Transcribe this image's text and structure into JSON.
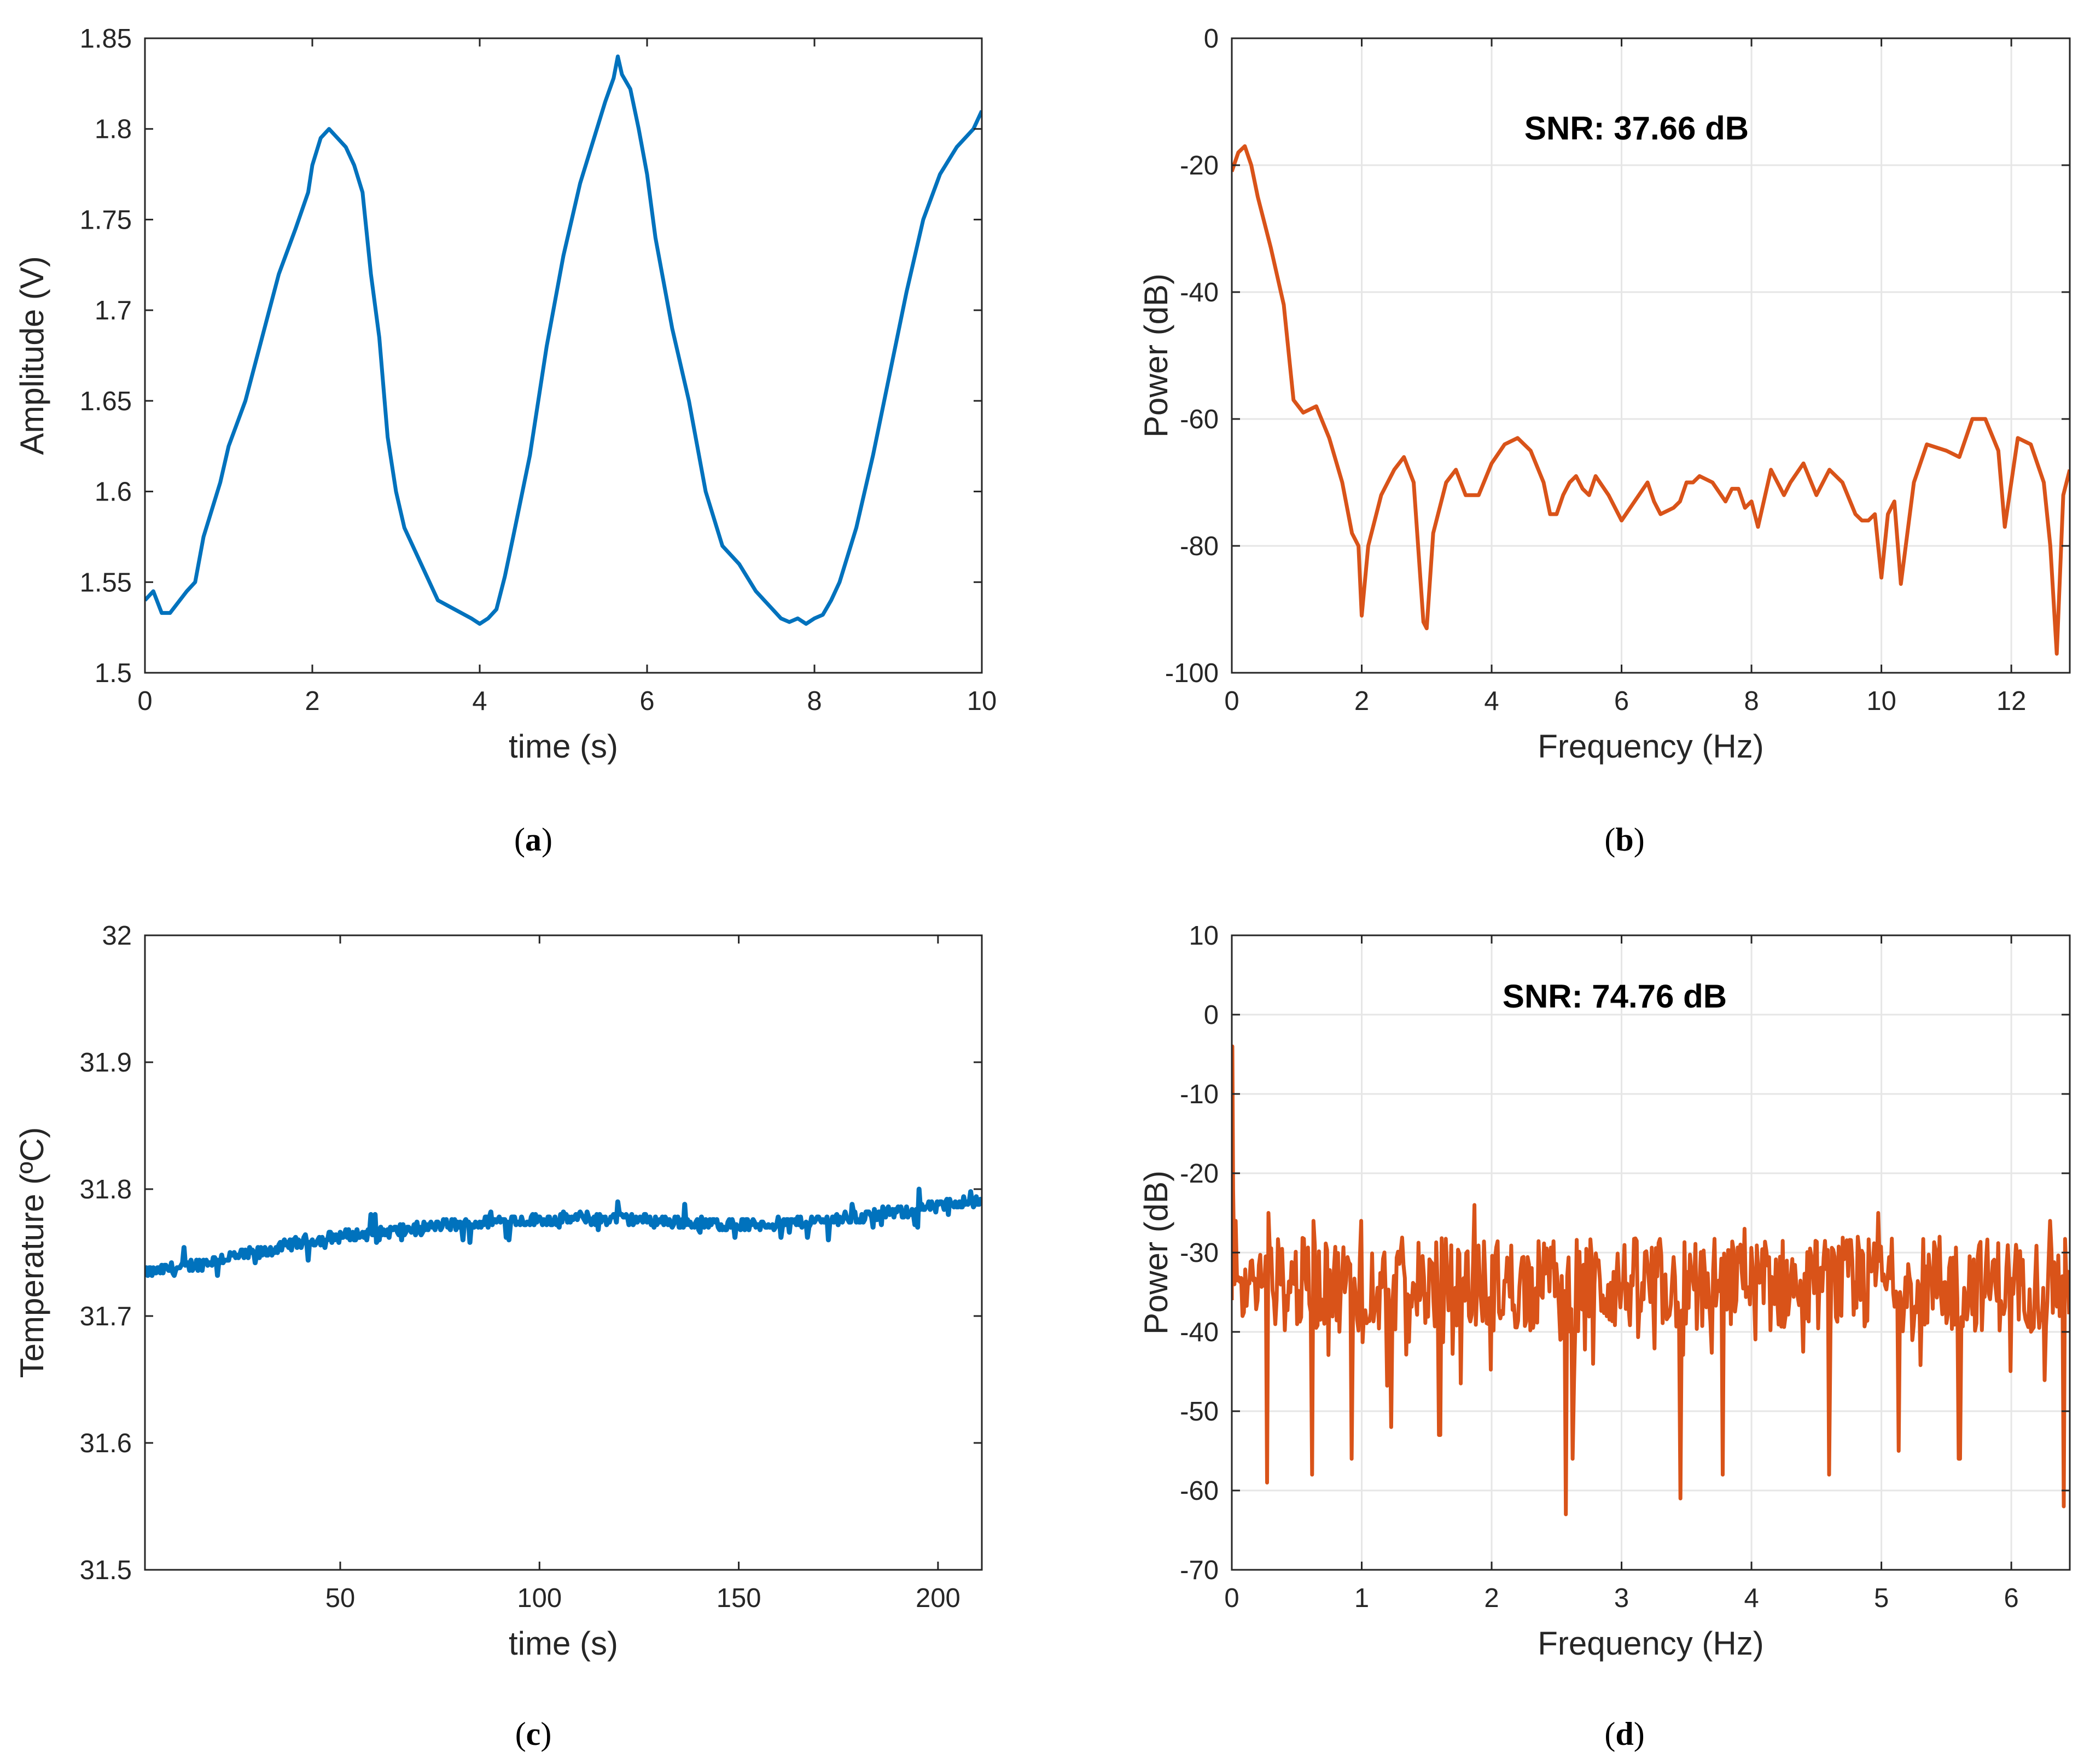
{
  "colors": {
    "blue": "#0072BD",
    "orange": "#D95319",
    "grid": "#e6e6e6",
    "axis": "#262626"
  },
  "chart_data": [
    {
      "id": "a",
      "type": "line",
      "caption_letter": "a",
      "xlabel": "time (s)",
      "ylabel": "Amplitude (V)",
      "xlim": [
        0,
        10
      ],
      "ylim": [
        1.5,
        1.85
      ],
      "xticks": [
        0,
        2,
        4,
        6,
        8,
        10
      ],
      "xtick_labels": [
        "0",
        "2",
        "4",
        "6",
        "8",
        "10"
      ],
      "yticks": [
        1.5,
        1.55,
        1.6,
        1.65,
        1.7,
        1.75,
        1.8,
        1.85
      ],
      "ytick_labels": [
        "1.5",
        "1.55",
        "1.6",
        "1.65",
        "1.7",
        "1.75",
        "1.8",
        "1.85"
      ],
      "grid": false,
      "color": "#0072BD",
      "series": [
        {
          "name": "signal",
          "x": [
            0,
            0.1,
            0.2,
            0.3,
            0.5,
            0.6,
            0.7,
            0.8,
            0.9,
            1.0,
            1.2,
            1.4,
            1.6,
            1.8,
            1.95,
            2.0,
            2.1,
            2.2,
            2.3,
            2.4,
            2.5,
            2.6,
            2.7,
            2.8,
            2.9,
            3.0,
            3.1,
            3.3,
            3.5,
            3.7,
            3.9,
            4.0,
            4.1,
            4.2,
            4.3,
            4.4,
            4.6,
            4.8,
            5.0,
            5.2,
            5.4,
            5.5,
            5.6,
            5.65,
            5.7,
            5.8,
            5.9,
            6.0,
            6.1,
            6.3,
            6.5,
            6.7,
            6.9,
            7.1,
            7.3,
            7.5,
            7.6,
            7.7,
            7.8,
            7.9,
            8.0,
            8.1,
            8.2,
            8.3,
            8.5,
            8.7,
            8.9,
            9.1,
            9.3,
            9.5,
            9.7,
            9.9,
            10.0
          ],
          "y": [
            1.54,
            1.545,
            1.533,
            1.533,
            1.545,
            1.55,
            1.575,
            1.59,
            1.605,
            1.625,
            1.65,
            1.685,
            1.72,
            1.745,
            1.765,
            1.78,
            1.795,
            1.8,
            1.795,
            1.79,
            1.78,
            1.765,
            1.72,
            1.685,
            1.63,
            1.6,
            1.58,
            1.56,
            1.54,
            1.535,
            1.53,
            1.527,
            1.53,
            1.535,
            1.553,
            1.575,
            1.62,
            1.68,
            1.73,
            1.77,
            1.8,
            1.815,
            1.828,
            1.84,
            1.83,
            1.822,
            1.8,
            1.775,
            1.74,
            1.69,
            1.65,
            1.6,
            1.57,
            1.56,
            1.545,
            1.535,
            1.53,
            1.528,
            1.53,
            1.527,
            1.53,
            1.532,
            1.54,
            1.55,
            1.58,
            1.62,
            1.665,
            1.71,
            1.75,
            1.775,
            1.79,
            1.8,
            1.81
          ]
        }
      ]
    },
    {
      "id": "b",
      "type": "line",
      "caption_letter": "b",
      "xlabel": "Frequency (Hz)",
      "ylabel": "Power (dB)",
      "xlim": [
        0,
        12.9
      ],
      "ylim": [
        -100,
        0
      ],
      "xticks": [
        0,
        2,
        4,
        6,
        8,
        10,
        12
      ],
      "xtick_labels": [
        "0",
        "2",
        "4",
        "6",
        "8",
        "10",
        "12"
      ],
      "yticks": [
        -100,
        -80,
        -60,
        -40,
        -20,
        0
      ],
      "ytick_labels": [
        "-100",
        "-80",
        "-60",
        "-40",
        "-20",
        "0"
      ],
      "grid": true,
      "color": "#D95319",
      "annotation": "SNR:  37.66 dB",
      "series": [
        {
          "name": "spectrum",
          "x": [
            0,
            0.1,
            0.2,
            0.3,
            0.4,
            0.6,
            0.8,
            0.95,
            1.1,
            1.3,
            1.5,
            1.7,
            1.85,
            1.95,
            2.0,
            2.1,
            2.3,
            2.5,
            2.65,
            2.8,
            2.95,
            3.0,
            3.1,
            3.3,
            3.45,
            3.6,
            3.8,
            4.0,
            4.2,
            4.4,
            4.6,
            4.8,
            4.9,
            5.0,
            5.1,
            5.2,
            5.3,
            5.4,
            5.5,
            5.6,
            5.8,
            6.0,
            6.2,
            6.4,
            6.5,
            6.6,
            6.8,
            6.9,
            7.0,
            7.1,
            7.2,
            7.4,
            7.6,
            7.7,
            7.8,
            7.9,
            8.0,
            8.1,
            8.3,
            8.5,
            8.6,
            8.8,
            9.0,
            9.2,
            9.4,
            9.6,
            9.7,
            9.8,
            9.9,
            10.0,
            10.1,
            10.2,
            10.3,
            10.5,
            10.7,
            11.0,
            11.2,
            11.4,
            11.6,
            11.8,
            11.9,
            12.1,
            12.3,
            12.5,
            12.6,
            12.7,
            12.8,
            12.9
          ],
          "y": [
            -21,
            -18,
            -17,
            -20,
            -25,
            -33,
            -42,
            -57,
            -59,
            -58,
            -63,
            -70,
            -78,
            -80,
            -91,
            -80,
            -72,
            -68,
            -66,
            -70,
            -92,
            -93,
            -78,
            -70,
            -68,
            -72,
            -72,
            -67,
            -64,
            -63,
            -65,
            -70,
            -75,
            -75,
            -72,
            -70,
            -69,
            -71,
            -72,
            -69,
            -72,
            -76,
            -73,
            -70,
            -73,
            -75,
            -74,
            -73,
            -70,
            -70,
            -69,
            -70,
            -73,
            -71,
            -71,
            -74,
            -73,
            -77,
            -68,
            -72,
            -70,
            -67,
            -72,
            -68,
            -70,
            -75,
            -76,
            -76,
            -75,
            -85,
            -75,
            -73,
            -86,
            -70,
            -64,
            -65,
            -66,
            -60,
            -60,
            -65,
            -77,
            -63,
            -64,
            -70,
            -80,
            -97,
            -72,
            -68
          ]
        }
      ]
    },
    {
      "id": "c",
      "type": "line",
      "caption_letter": "c",
      "xlabel": "time (s)",
      "ylabel": "Temperature (ºC)",
      "xlim": [
        1,
        211
      ],
      "ylim": [
        31.5,
        32
      ],
      "xticks": [
        50,
        100,
        150,
        200
      ],
      "xtick_labels": [
        "50",
        "100",
        "150",
        "200"
      ],
      "yticks": [
        31.5,
        31.6,
        31.7,
        31.8,
        31.9,
        32
      ],
      "ytick_labels": [
        "31.5",
        "31.6",
        "31.7",
        "31.8",
        "31.9",
        "32"
      ],
      "grid": false,
      "color": "#0072BD",
      "series": [
        {
          "name": "temperature",
          "x": [
            1,
            10,
            20,
            30,
            40,
            50,
            60,
            70,
            80,
            90,
            100,
            110,
            120,
            130,
            140,
            150,
            160,
            170,
            180,
            190,
            200,
            205,
            211
          ],
          "y": [
            31.734,
            31.738,
            31.745,
            31.75,
            31.758,
            31.763,
            31.765,
            31.77,
            31.772,
            31.775,
            31.776,
            31.777,
            31.777,
            31.775,
            31.773,
            31.772,
            31.773,
            31.775,
            31.778,
            31.782,
            31.786,
            31.79,
            31.79
          ],
          "noise_amplitude": 0.006
        }
      ]
    },
    {
      "id": "d",
      "type": "line",
      "caption_letter": "d",
      "xlabel": "Frequency (Hz)",
      "ylabel": "Power (dB)",
      "xlim": [
        0,
        6.45
      ],
      "ylim": [
        -70,
        10
      ],
      "xticks": [
        0,
        1,
        2,
        3,
        4,
        5,
        6
      ],
      "xtick_labels": [
        "0",
        "1",
        "2",
        "3",
        "4",
        "5",
        "6"
      ],
      "yticks": [
        -70,
        -60,
        -50,
        -40,
        -30,
        -20,
        -10,
        0,
        10
      ],
      "ytick_labels": [
        "-70",
        "-60",
        "-50",
        "-40",
        "-30",
        "-20",
        "-10",
        "0",
        "10"
      ],
      "grid": true,
      "color": "#D95319",
      "annotation": "SNR: 74.76 dB",
      "series": [
        {
          "name": "spectrum",
          "peak": {
            "x": 0.0,
            "y": -4
          },
          "baseline": -34,
          "spread": 6,
          "dips": [
            [
              0.08,
              -38
            ],
            [
              0.27,
              -59
            ],
            [
              0.62,
              -58
            ],
            [
              0.92,
              -56
            ],
            [
              1.23,
              -52
            ],
            [
              1.6,
              -53
            ],
            [
              2.57,
              -63
            ],
            [
              2.62,
              -56
            ],
            [
              3.45,
              -61
            ],
            [
              3.78,
              -58
            ],
            [
              4.6,
              -58
            ],
            [
              5.13,
              -55
            ],
            [
              5.6,
              -56
            ],
            [
              6.4,
              -62
            ]
          ],
          "spikes": [
            [
              0.03,
              -26
            ],
            [
              0.28,
              -25
            ],
            [
              0.63,
              -26
            ],
            [
              1.0,
              -26
            ],
            [
              1.87,
              -24
            ],
            [
              3.95,
              -27
            ],
            [
              4.98,
              -25
            ],
            [
              5.45,
              -28
            ],
            [
              6.3,
              -26
            ]
          ]
        }
      ]
    }
  ]
}
